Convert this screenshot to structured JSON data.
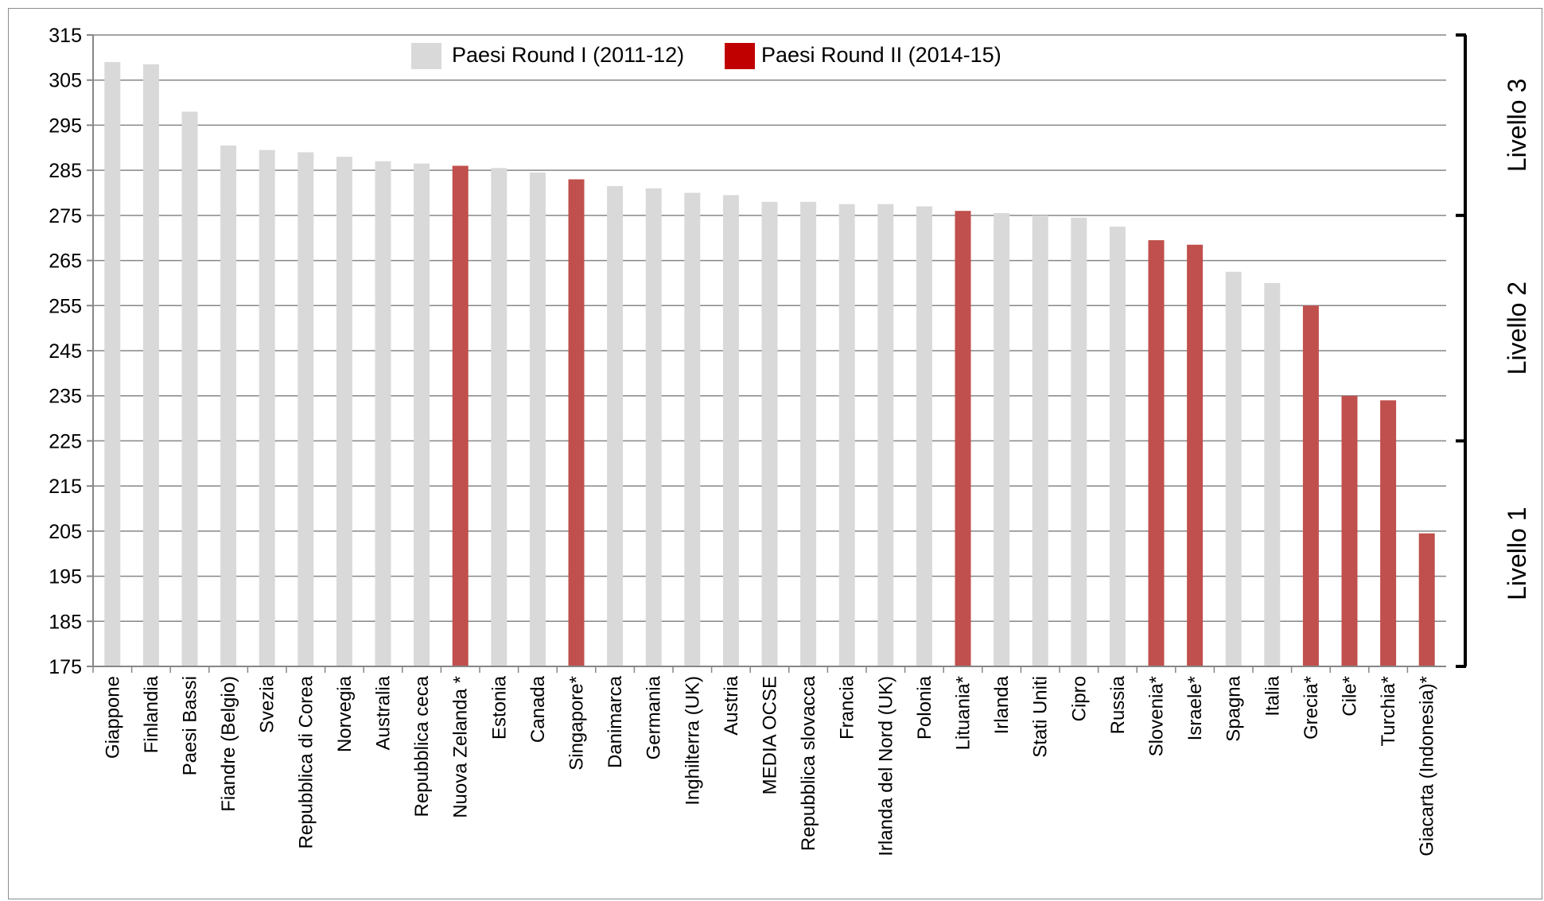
{
  "chart_data": {
    "type": "bar",
    "categories": [
      "Giappone",
      "Finlandia",
      "Paesi Bassi",
      "Fiandre (Belgio)",
      "Svezia",
      "Repubblica di Corea",
      "Norvegia",
      "Australia",
      "Repubblica ceca",
      "Nuova Zelanda *",
      "Estonia",
      "Canada",
      "Singapore*",
      "Danimarca",
      "Germania",
      "Inghilterra (UK)",
      "Austria",
      "MEDIA OCSE",
      "Repubblica slovacca",
      "Francia",
      "Irlanda del Nord (UK)",
      "Polonia",
      "Lituania*",
      "Irlanda",
      "Stati Uniti",
      "Cipro",
      "Russia",
      "Slovenia*",
      "Israele*",
      "Spagna",
      "Italia",
      "Grecia*",
      "Cile*",
      "Turchia*",
      "Giacarta (Indonesia)*"
    ],
    "values": [
      309,
      308.5,
      298,
      290.5,
      289.5,
      289,
      288,
      287,
      286.5,
      286,
      285.5,
      284.5,
      283,
      281.5,
      281,
      280,
      279.5,
      278,
      278,
      277.5,
      277.5,
      277,
      276,
      275.5,
      275,
      274.5,
      272.5,
      269.5,
      268.5,
      262.5,
      260,
      255,
      235,
      234,
      204.5
    ],
    "round": [
      1,
      1,
      1,
      1,
      1,
      1,
      1,
      1,
      1,
      2,
      1,
      1,
      2,
      1,
      1,
      1,
      1,
      1,
      1,
      1,
      1,
      1,
      2,
      1,
      1,
      1,
      1,
      2,
      2,
      1,
      1,
      2,
      2,
      2,
      2
    ],
    "series": [
      {
        "name": "Paesi Round I (2011-12)",
        "color": "#d9d9d9",
        "legend_color": "#d9d9d9"
      },
      {
        "name": "Paesi Round II (2014-15)",
        "color": "#c0504d",
        "legend_color": "#c00000"
      }
    ],
    "yticks": [
      "175",
      "185",
      "195",
      "205",
      "215",
      "225",
      "235",
      "245",
      "255",
      "265",
      "275",
      "285",
      "295",
      "305",
      "315"
    ],
    "ylim": [
      175,
      315
    ],
    "grid": true,
    "legend_position": "top-center",
    "levels": [
      {
        "label": "Livello 1",
        "from": 175,
        "to": 225
      },
      {
        "label": "Livello 2",
        "from": 225,
        "to": 275
      },
      {
        "label": "Livello 3",
        "from": 275,
        "to": 315
      }
    ]
  }
}
